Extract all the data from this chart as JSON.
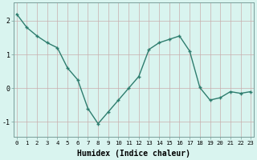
{
  "x": [
    0,
    1,
    2,
    3,
    4,
    5,
    6,
    7,
    8,
    9,
    10,
    11,
    12,
    13,
    14,
    15,
    16,
    17,
    18,
    19,
    20,
    21,
    22,
    23
  ],
  "y": [
    2.2,
    1.8,
    1.55,
    1.35,
    1.2,
    0.6,
    0.25,
    -0.6,
    -1.05,
    -0.7,
    -0.35,
    0.0,
    0.35,
    1.15,
    1.35,
    1.45,
    1.55,
    1.1,
    0.02,
    -0.35,
    -0.28,
    -0.1,
    -0.15,
    -0.1
  ],
  "line_color": "#2e7d6e",
  "marker": "+",
  "markersize": 3.5,
  "markeredgewidth": 1.0,
  "linewidth": 1.0,
  "bg_color": "#d9f4ef",
  "grid_color": "#c8aeae",
  "xlabel": "Humidex (Indice chaleur)",
  "xlabel_fontsize": 7,
  "yticks": [
    -1,
    0,
    1,
    2
  ],
  "ytick_labels": [
    "-1",
    "0",
    "1",
    "2"
  ],
  "xtick_labels": [
    "0",
    "1",
    "2",
    "3",
    "4",
    "5",
    "6",
    "7",
    "8",
    "9",
    "10",
    "11",
    "12",
    "13",
    "14",
    "15",
    "16",
    "17",
    "18",
    "19",
    "20",
    "21",
    "22",
    "23"
  ],
  "xlim": [
    -0.3,
    23.3
  ],
  "ylim": [
    -1.45,
    2.55
  ],
  "ytick_fontsize": 6,
  "xtick_fontsize": 5.2
}
